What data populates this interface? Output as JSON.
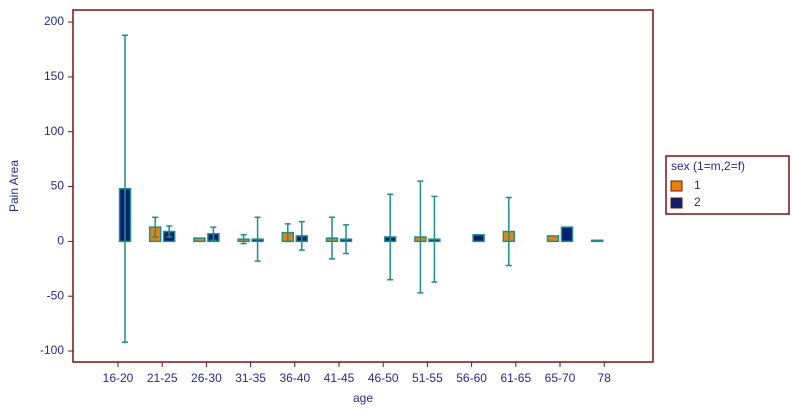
{
  "chart_data": {
    "type": "bar",
    "x_label": "age",
    "y_label": "Pain Area",
    "categories": [
      "16-20",
      "21-25",
      "26-30",
      "31-35",
      "36-40",
      "41-45",
      "46-50",
      "51-55",
      "56-60",
      "61-65",
      "65-70",
      "78"
    ],
    "series": [
      {
        "name": "1",
        "color": "#e8820c",
        "values": [
          null,
          13,
          3,
          2,
          8,
          3,
          null,
          4,
          null,
          9,
          5,
          1
        ],
        "errors": [
          null,
          9,
          null,
          4,
          8,
          19,
          null,
          51,
          null,
          31,
          null,
          null
        ]
      },
      {
        "name": "2",
        "color": "#0a1f6e",
        "values": [
          48,
          9,
          7,
          2,
          5,
          2,
          4,
          2,
          6,
          null,
          13,
          null
        ],
        "errors": [
          140,
          5,
          6,
          20,
          13,
          13,
          39,
          39,
          null,
          null,
          null,
          null
        ]
      }
    ],
    "legend_title": "sex (1=m,2=f)",
    "legend_position": "right",
    "error_color": "#1f8f8a",
    "ylim": [
      -110,
      211
    ],
    "yticks": [
      -100,
      -50,
      0,
      50,
      100,
      150,
      200
    ]
  }
}
